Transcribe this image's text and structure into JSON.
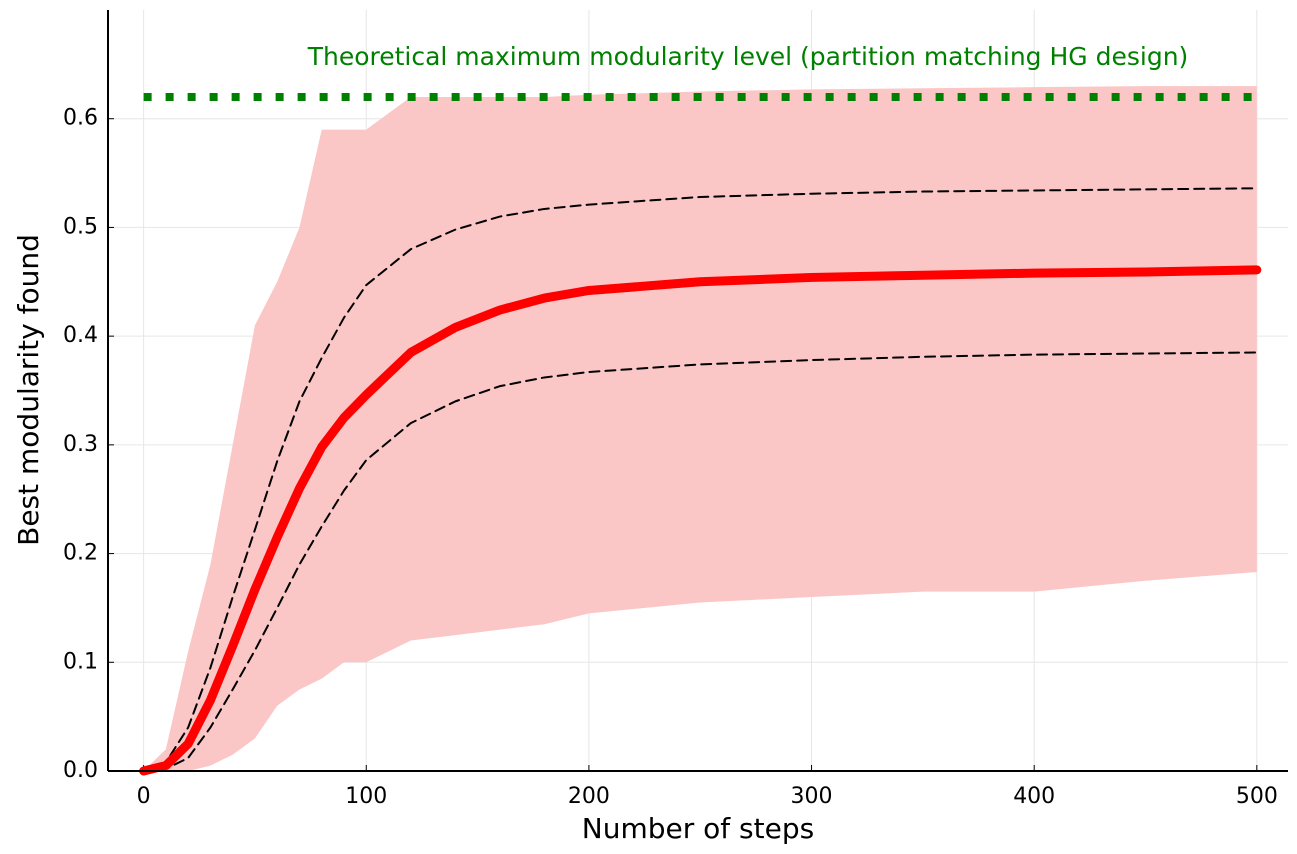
{
  "chart_data": {
    "type": "line",
    "x_label": "Number of steps",
    "y_label": "Best modularity found",
    "x": [
      0,
      10,
      20,
      30,
      40,
      50,
      60,
      70,
      80,
      90,
      100,
      120,
      140,
      160,
      180,
      200,
      250,
      300,
      350,
      400,
      450,
      500
    ],
    "band": {
      "color": "#fbc6c6",
      "upper": [
        0,
        0.02,
        0.11,
        0.19,
        0.3,
        0.41,
        0.45,
        0.5,
        0.59,
        0.59,
        0.59,
        0.62,
        0.62,
        0.62,
        0.62,
        0.622,
        0.625,
        0.627,
        0.628,
        0.629,
        0.63,
        0.63
      ],
      "lower": [
        0,
        0,
        0,
        0.005,
        0.015,
        0.03,
        0.06,
        0.075,
        0.085,
        0.1,
        0.1,
        0.12,
        0.125,
        0.13,
        0.135,
        0.145,
        0.155,
        0.16,
        0.165,
        0.165,
        0.175,
        0.183
      ]
    },
    "series": [
      {
        "color": "#ff0000",
        "style": "solid",
        "values": [
          0,
          0.005,
          0.025,
          0.065,
          0.115,
          0.167,
          0.215,
          0.26,
          0.298,
          0.325,
          0.346,
          0.385,
          0.408,
          0.424,
          0.435,
          0.442,
          0.45,
          0.454,
          0.456,
          0.458,
          0.459,
          0.461
        ]
      },
      {
        "color": "#000000",
        "style": "dashed",
        "values": [
          0,
          0.008,
          0.04,
          0.095,
          0.16,
          0.222,
          0.285,
          0.34,
          0.38,
          0.417,
          0.447,
          0.48,
          0.498,
          0.51,
          0.517,
          0.521,
          0.528,
          0.531,
          0.533,
          0.534,
          0.535,
          0.536
        ]
      },
      {
        "color": "#000000",
        "style": "dashed",
        "values": [
          0,
          0.002,
          0.012,
          0.04,
          0.075,
          0.111,
          0.15,
          0.19,
          0.225,
          0.258,
          0.286,
          0.32,
          0.34,
          0.354,
          0.362,
          0.367,
          0.374,
          0.378,
          0.381,
          0.383,
          0.384,
          0.385
        ]
      }
    ],
    "reference_line": {
      "value": 0.62,
      "label": "Theoretical maximum modularity level (partition matching HG design)",
      "color": "#008000"
    },
    "xlim": [
      -16,
      514
    ],
    "ylim": [
      0,
      0.7
    ],
    "xticks": [
      0,
      100,
      200,
      300,
      400,
      500
    ],
    "yticks": [
      {
        "value": 0,
        "label": "0.0"
      },
      0.1,
      0.2,
      0.3,
      0.4,
      0.5,
      0.6
    ],
    "grid": true
  }
}
